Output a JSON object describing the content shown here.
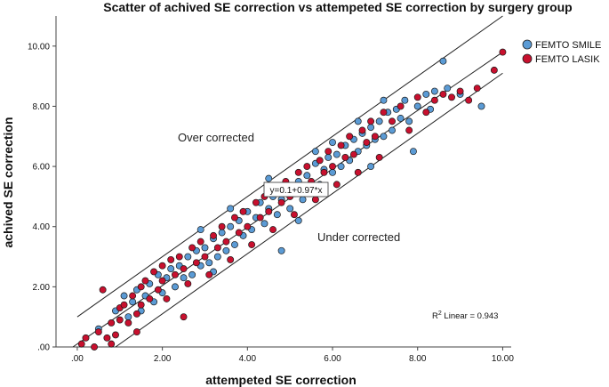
{
  "chart_data": {
    "type": "scatter",
    "title": "Scatter of achived SE correction vs attempeted SE correction by surgery group",
    "xlabel": "attempeted SE correction",
    "ylabel": "achived SE correction",
    "xlim": [
      -0.5,
      10.2
    ],
    "ylim": [
      0,
      11
    ],
    "x_ticks": [
      ".00",
      "2.00",
      "4.00",
      "6.00",
      "8.00",
      "10.00"
    ],
    "y_ticks": [
      ".00",
      "2.00",
      "4.00",
      "6.00",
      "8.00",
      "10.00"
    ],
    "grid": false,
    "legend_position": "top-right",
    "annotations": {
      "over": "Over corrected",
      "under": "Under corrected",
      "equation": "y=0.1+0.97*x",
      "r2_prefix": "R",
      "r2_sup": "2",
      "r2_suffix": " Linear = 0.943"
    },
    "fit_line": {
      "intercept": 0.1,
      "slope": 0.97
    },
    "bound_lines": [
      {
        "intercept": 1.0,
        "slope": 1.0
      },
      {
        "intercept": -0.9,
        "slope": 1.0
      }
    ],
    "series": [
      {
        "name": "FEMTO SMILE",
        "color": "#5b9bd5",
        "points": [
          [
            0.5,
            0.6
          ],
          [
            0.9,
            1.2
          ],
          [
            1.1,
            1.7
          ],
          [
            1.2,
            1.0
          ],
          [
            1.3,
            1.5
          ],
          [
            1.4,
            1.9
          ],
          [
            1.5,
            1.2
          ],
          [
            1.6,
            1.7
          ],
          [
            1.7,
            2.1
          ],
          [
            1.8,
            1.5
          ],
          [
            1.9,
            2.4
          ],
          [
            2.0,
            1.8
          ],
          [
            2.1,
            2.3
          ],
          [
            2.2,
            2.6
          ],
          [
            2.3,
            2.0
          ],
          [
            2.4,
            2.7
          ],
          [
            2.5,
            2.3
          ],
          [
            2.6,
            3.0
          ],
          [
            2.7,
            2.4
          ],
          [
            2.8,
            3.2
          ],
          [
            2.9,
            2.7
          ],
          [
            3.0,
            3.3
          ],
          [
            3.1,
            2.8
          ],
          [
            3.2,
            3.6
          ],
          [
            3.3,
            3.0
          ],
          [
            3.4,
            3.8
          ],
          [
            3.5,
            3.2
          ],
          [
            3.6,
            4.0
          ],
          [
            3.7,
            3.4
          ],
          [
            3.8,
            4.2
          ],
          [
            3.9,
            3.7
          ],
          [
            4.0,
            4.5
          ],
          [
            4.1,
            3.9
          ],
          [
            4.2,
            4.3
          ],
          [
            4.3,
            4.8
          ],
          [
            4.4,
            4.1
          ],
          [
            4.5,
            4.6
          ],
          [
            4.6,
            5.0
          ],
          [
            4.7,
            4.4
          ],
          [
            4.8,
            4.9
          ],
          [
            4.9,
            5.3
          ],
          [
            5.0,
            4.6
          ],
          [
            5.1,
            5.1
          ],
          [
            5.2,
            5.5
          ],
          [
            5.3,
            4.9
          ],
          [
            5.4,
            5.7
          ],
          [
            5.5,
            5.2
          ],
          [
            5.6,
            6.1
          ],
          [
            5.7,
            5.4
          ],
          [
            5.8,
            5.9
          ],
          [
            5.9,
            6.3
          ],
          [
            6.0,
            5.8
          ],
          [
            6.1,
            6.4
          ],
          [
            6.2,
            6.0
          ],
          [
            6.3,
            6.7
          ],
          [
            6.4,
            6.2
          ],
          [
            6.5,
            6.9
          ],
          [
            6.6,
            6.5
          ],
          [
            6.7,
            7.1
          ],
          [
            6.8,
            6.7
          ],
          [
            6.9,
            7.3
          ],
          [
            7.0,
            6.9
          ],
          [
            7.1,
            7.5
          ],
          [
            7.2,
            7.0
          ],
          [
            7.3,
            7.8
          ],
          [
            7.4,
            7.2
          ],
          [
            7.5,
            7.9
          ],
          [
            7.6,
            7.6
          ],
          [
            7.7,
            8.2
          ],
          [
            7.8,
            7.5
          ],
          [
            7.9,
            6.5
          ],
          [
            8.0,
            8.0
          ],
          [
            8.2,
            8.4
          ],
          [
            8.3,
            7.9
          ],
          [
            8.4,
            8.5
          ],
          [
            8.6,
            9.5
          ],
          [
            8.7,
            8.6
          ],
          [
            9.0,
            8.4
          ],
          [
            9.5,
            8.0
          ],
          [
            6.0,
            6.8
          ],
          [
            4.8,
            3.2
          ],
          [
            3.2,
            2.5
          ],
          [
            5.6,
            6.5
          ],
          [
            7.2,
            8.2
          ],
          [
            6.6,
            7.5
          ],
          [
            4.5,
            5.6
          ],
          [
            3.6,
            4.6
          ],
          [
            2.9,
            3.9
          ],
          [
            5.2,
            4.2
          ],
          [
            6.9,
            6.0
          ]
        ]
      },
      {
        "name": "FEMTO LASIK",
        "color": "#c8102e",
        "points": [
          [
            0.1,
            0.1
          ],
          [
            0.2,
            0.3
          ],
          [
            0.4,
            0.0
          ],
          [
            0.5,
            0.5
          ],
          [
            0.6,
            1.9
          ],
          [
            0.7,
            0.3
          ],
          [
            0.8,
            0.8
          ],
          [
            0.9,
            0.4
          ],
          [
            1.0,
            1.3
          ],
          [
            1.0,
            0.9
          ],
          [
            1.1,
            1.4
          ],
          [
            1.2,
            0.8
          ],
          [
            1.3,
            1.7
          ],
          [
            1.4,
            1.1
          ],
          [
            1.5,
            2.0
          ],
          [
            1.5,
            1.4
          ],
          [
            1.6,
            2.2
          ],
          [
            1.7,
            1.6
          ],
          [
            1.8,
            2.5
          ],
          [
            1.9,
            1.9
          ],
          [
            2.0,
            2.7
          ],
          [
            2.0,
            2.2
          ],
          [
            2.1,
            1.6
          ],
          [
            2.2,
            2.9
          ],
          [
            2.3,
            2.4
          ],
          [
            2.4,
            3.0
          ],
          [
            2.5,
            2.6
          ],
          [
            2.6,
            2.1
          ],
          [
            2.7,
            3.3
          ],
          [
            2.8,
            2.8
          ],
          [
            2.9,
            3.5
          ],
          [
            3.0,
            3.0
          ],
          [
            3.1,
            2.4
          ],
          [
            3.2,
            3.7
          ],
          [
            3.3,
            3.3
          ],
          [
            3.4,
            4.0
          ],
          [
            3.5,
            3.5
          ],
          [
            3.6,
            2.9
          ],
          [
            3.7,
            4.3
          ],
          [
            3.8,
            3.8
          ],
          [
            3.9,
            4.5
          ],
          [
            4.0,
            4.0
          ],
          [
            4.1,
            3.4
          ],
          [
            4.2,
            4.8
          ],
          [
            4.3,
            4.3
          ],
          [
            4.4,
            5.0
          ],
          [
            4.5,
            4.5
          ],
          [
            4.6,
            3.9
          ],
          [
            4.7,
            5.2
          ],
          [
            4.8,
            4.8
          ],
          [
            4.9,
            5.5
          ],
          [
            5.0,
            5.0
          ],
          [
            5.1,
            4.4
          ],
          [
            5.2,
            5.8
          ],
          [
            5.3,
            5.3
          ],
          [
            5.4,
            6.0
          ],
          [
            5.5,
            5.5
          ],
          [
            5.6,
            4.9
          ],
          [
            5.7,
            6.2
          ],
          [
            5.8,
            5.8
          ],
          [
            5.9,
            6.5
          ],
          [
            6.0,
            6.0
          ],
          [
            6.1,
            5.4
          ],
          [
            6.2,
            6.7
          ],
          [
            6.3,
            6.3
          ],
          [
            6.4,
            7.0
          ],
          [
            6.5,
            6.4
          ],
          [
            6.6,
            5.8
          ],
          [
            6.7,
            7.2
          ],
          [
            6.8,
            6.8
          ],
          [
            6.9,
            7.5
          ],
          [
            7.0,
            7.0
          ],
          [
            7.1,
            6.3
          ],
          [
            7.2,
            7.8
          ],
          [
            7.4,
            7.5
          ],
          [
            7.6,
            8.0
          ],
          [
            7.8,
            7.2
          ],
          [
            8.0,
            8.3
          ],
          [
            8.2,
            7.8
          ],
          [
            8.4,
            8.2
          ],
          [
            8.6,
            8.4
          ],
          [
            8.8,
            8.3
          ],
          [
            9.0,
            8.5
          ],
          [
            9.2,
            8.2
          ],
          [
            9.4,
            8.6
          ],
          [
            9.8,
            9.2
          ],
          [
            10.0,
            9.8
          ],
          [
            0.8,
            0.1
          ],
          [
            1.4,
            0.5
          ],
          [
            2.5,
            1.0
          ]
        ]
      }
    ]
  }
}
